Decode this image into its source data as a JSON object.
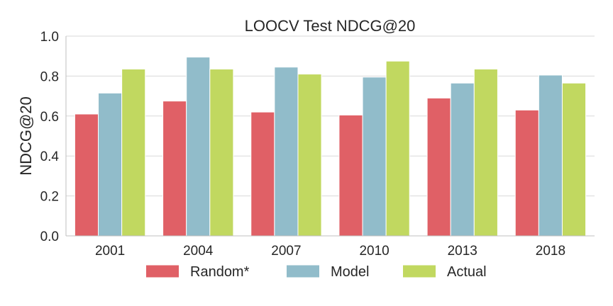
{
  "chart_data": {
    "type": "bar",
    "title": "LOOCV Test NDCG@20",
    "xlabel": "",
    "ylabel": "NDCG@20",
    "ylim": [
      0,
      1.0
    ],
    "yticks": [
      "0.0",
      "0.2",
      "0.4",
      "0.6",
      "0.8",
      "1.0"
    ],
    "grid": "horizontal",
    "legend_position": "bottom",
    "categories": [
      "2001",
      "2004",
      "2007",
      "2010",
      "2013",
      "2018"
    ],
    "series": [
      {
        "name": "Random*",
        "color": "#e06066",
        "values": [
          0.61,
          0.675,
          0.62,
          0.605,
          0.69,
          0.63
        ]
      },
      {
        "name": "Model",
        "color": "#91bcca",
        "values": [
          0.715,
          0.895,
          0.845,
          0.795,
          0.765,
          0.805
        ]
      },
      {
        "name": "Actual",
        "color": "#c1d860",
        "values": [
          0.835,
          0.835,
          0.81,
          0.875,
          0.835,
          0.765
        ]
      }
    ]
  }
}
